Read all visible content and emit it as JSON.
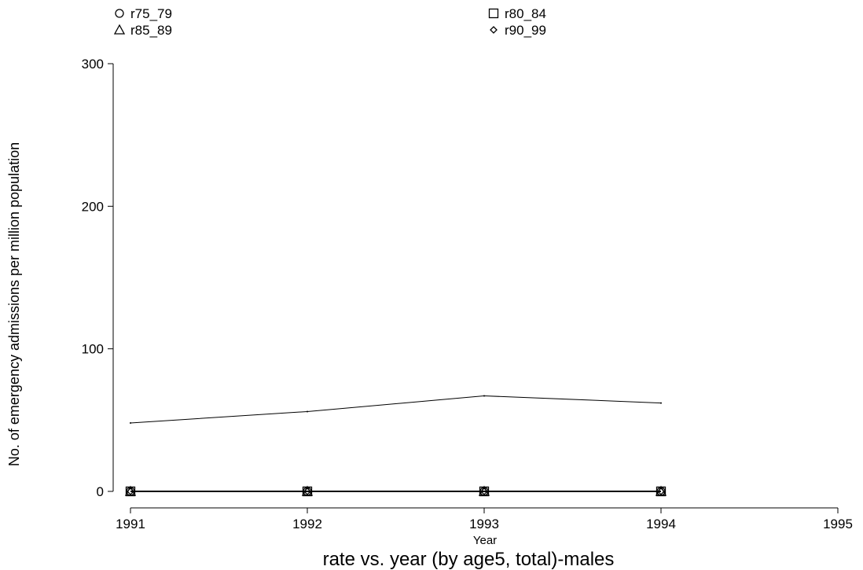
{
  "chart_data": {
    "type": "line",
    "title": "rate vs. year (by age5, total)-males",
    "xlabel": "Year",
    "ylabel": "No. of emergency admissions per million population",
    "xlim": [
      1991,
      1995
    ],
    "ylim": [
      0,
      300
    ],
    "x_ticks": [
      "1991",
      "1992",
      "1993",
      "1994",
      "1995"
    ],
    "y_ticks": [
      "0",
      "100",
      "200",
      "300"
    ],
    "x": [
      1991,
      1992,
      1993,
      1994
    ],
    "legend_position": "top",
    "grid": false,
    "series": [
      {
        "name": "r75_79",
        "marker": "circle",
        "values": [
          0,
          0,
          0,
          0
        ]
      },
      {
        "name": "r80_84",
        "marker": "square",
        "values": [
          0,
          0,
          0,
          0
        ]
      },
      {
        "name": "r85_89",
        "marker": "triangle",
        "values": [
          0,
          0,
          0,
          0
        ]
      },
      {
        "name": "r90_99",
        "marker": "diamond",
        "values": [
          0,
          0,
          0,
          0
        ]
      },
      {
        "marker": "none",
        "values": [
          48,
          56,
          67,
          62
        ]
      }
    ]
  }
}
